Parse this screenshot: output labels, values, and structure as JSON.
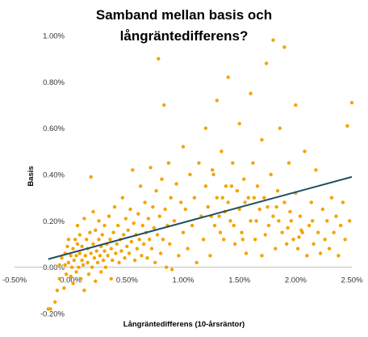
{
  "chart_data": {
    "type": "scatter",
    "title_lines": [
      "Samband mellan basis och",
      "långräntedifferens?"
    ],
    "xlabel": "Långräntedifferens (10-årsräntor)",
    "ylabel": "Basis",
    "x_ticks": [
      "-0.50%",
      "0.00%",
      "0.50%",
      "1.00%",
      "1.50%",
      "2.00%",
      "2.50%"
    ],
    "y_ticks": [
      "-0.20%",
      "0.00%",
      "0.20%",
      "0.40%",
      "0.60%",
      "0.80%",
      "1.00%"
    ],
    "xlim": [
      -0.5,
      2.5
    ],
    "ylim": [
      -0.2,
      1.0
    ],
    "grid": false,
    "legend": "none",
    "point_color": "#f5a300",
    "trendline_color": "#1f4e66",
    "trendline": {
      "x": [
        -0.2,
        2.5
      ],
      "y": [
        0.035,
        0.39
      ]
    },
    "series": [
      {
        "points": [
          [
            -0.2,
            -0.18
          ],
          [
            -0.18,
            -0.18
          ],
          [
            -0.14,
            -0.15
          ],
          [
            -0.12,
            -0.1
          ],
          [
            -0.1,
            -0.05
          ],
          [
            -0.1,
            0.01
          ],
          [
            -0.08,
            0.04
          ],
          [
            -0.06,
            -0.09
          ],
          [
            -0.05,
            0.06
          ],
          [
            -0.05,
            0.01
          ],
          [
            -0.04,
            -0.03
          ],
          [
            -0.03,
            0.09
          ],
          [
            -0.02,
            0.02
          ],
          [
            -0.02,
            0.12
          ],
          [
            0.0,
            -0.04
          ],
          [
            0.0,
            0.05
          ],
          [
            0.01,
            0.0
          ],
          [
            0.02,
            0.08
          ],
          [
            0.02,
            -0.07
          ],
          [
            0.03,
            0.03
          ],
          [
            0.04,
            0.12
          ],
          [
            0.05,
            0.05
          ],
          [
            0.05,
            -0.02
          ],
          [
            0.06,
            0.1
          ],
          [
            0.06,
            0.18
          ],
          [
            0.07,
            0.0
          ],
          [
            0.08,
            0.06
          ],
          [
            0.08,
            0.14
          ],
          [
            0.09,
            -0.05
          ],
          [
            0.1,
            0.03
          ],
          [
            0.1,
            0.09
          ],
          [
            0.11,
            0.01
          ],
          [
            0.12,
            0.21
          ],
          [
            0.12,
            -0.1
          ],
          [
            0.13,
            0.05
          ],
          [
            0.14,
            0.12
          ],
          [
            0.15,
            0.02
          ],
          [
            0.15,
            0.08
          ],
          [
            0.16,
            -0.03
          ],
          [
            0.17,
            0.15
          ],
          [
            0.18,
            0.06
          ],
          [
            0.18,
            0.39
          ],
          [
            0.19,
            0.0
          ],
          [
            0.2,
            0.1
          ],
          [
            0.2,
            0.24
          ],
          [
            0.21,
            0.04
          ],
          [
            0.22,
            -0.06
          ],
          [
            0.22,
            0.16
          ],
          [
            0.23,
            0.07
          ],
          [
            0.24,
            0.02
          ],
          [
            0.25,
            0.12
          ],
          [
            0.25,
            0.2
          ],
          [
            0.26,
            0.05
          ],
          [
            0.27,
            -0.02
          ],
          [
            0.27,
            0.09
          ],
          [
            0.28,
            0.14
          ],
          [
            0.29,
            0.03
          ],
          [
            0.3,
            0.07
          ],
          [
            0.3,
            0.18
          ],
          [
            0.31,
            0.0
          ],
          [
            0.32,
            0.1
          ],
          [
            0.33,
            0.05
          ],
          [
            0.34,
            0.22
          ],
          [
            0.35,
            0.12
          ],
          [
            0.36,
            -0.05
          ],
          [
            0.36,
            0.08
          ],
          [
            0.37,
            0.03
          ],
          [
            0.38,
            0.15
          ],
          [
            0.39,
            0.26
          ],
          [
            0.4,
            0.06
          ],
          [
            0.41,
            0.1
          ],
          [
            0.42,
            0.18
          ],
          [
            0.43,
            0.02
          ],
          [
            0.44,
            0.12
          ],
          [
            0.45,
            0.07
          ],
          [
            0.46,
            0.3
          ],
          [
            0.47,
            0.14
          ],
          [
            0.48,
            0.04
          ],
          [
            0.49,
            0.21
          ],
          [
            0.5,
            0.09
          ],
          [
            0.51,
            0.16
          ],
          [
            0.52,
            0.06
          ],
          [
            0.53,
            0.25
          ],
          [
            0.54,
            0.11
          ],
          [
            0.55,
            0.42
          ],
          [
            0.56,
            0.19
          ],
          [
            0.57,
            0.03
          ],
          [
            0.58,
            0.14
          ],
          [
            0.59,
            0.08
          ],
          [
            0.6,
            0.23
          ],
          [
            0.61,
            0.12
          ],
          [
            0.62,
            0.35
          ],
          [
            0.63,
            0.05
          ],
          [
            0.64,
            0.18
          ],
          [
            0.65,
            0.1
          ],
          [
            0.66,
            0.28
          ],
          [
            0.67,
            0.15
          ],
          [
            0.68,
            0.04
          ],
          [
            0.69,
            0.21
          ],
          [
            0.7,
            0.12
          ],
          [
            0.71,
            0.43
          ],
          [
            0.72,
            0.08
          ],
          [
            0.73,
            0.26
          ],
          [
            0.74,
            0.17
          ],
          [
            0.75,
            0.02
          ],
          [
            0.76,
            0.33
          ],
          [
            0.77,
            0.14
          ],
          [
            0.78,
            0.9
          ],
          [
            0.79,
            0.22
          ],
          [
            0.8,
            0.06
          ],
          [
            0.81,
            0.38
          ],
          [
            0.82,
            0.12
          ],
          [
            0.83,
            0.7
          ],
          [
            0.84,
            0.25
          ],
          [
            0.85,
            0.0
          ],
          [
            0.86,
            0.18
          ],
          [
            0.87,
            0.45
          ],
          [
            0.88,
            0.1
          ],
          [
            0.89,
            0.3
          ],
          [
            0.9,
            -0.01
          ],
          [
            0.92,
            0.2
          ],
          [
            0.94,
            0.36
          ],
          [
            0.96,
            0.05
          ],
          [
            0.98,
            0.28
          ],
          [
            1.0,
            0.15
          ],
          [
            1.0,
            0.52
          ],
          [
            1.02,
            0.25
          ],
          [
            1.04,
            0.08
          ],
          [
            1.06,
            0.4
          ],
          [
            1.08,
            0.18
          ],
          [
            1.1,
            0.3
          ],
          [
            1.12,
            0.02
          ],
          [
            1.14,
            0.45
          ],
          [
            1.16,
            0.22
          ],
          [
            1.18,
            0.12
          ],
          [
            1.2,
            0.35
          ],
          [
            1.2,
            0.6
          ],
          [
            1.22,
            0.26
          ],
          [
            1.24,
            0.05
          ],
          [
            1.26,
            0.42
          ],
          [
            1.28,
            0.18
          ],
          [
            1.3,
            0.3
          ],
          [
            1.3,
            0.72
          ],
          [
            1.32,
            0.22
          ],
          [
            1.34,
            0.5
          ],
          [
            1.36,
            0.12
          ],
          [
            1.38,
            0.35
          ],
          [
            1.4,
            0.28
          ],
          [
            1.4,
            0.82
          ],
          [
            1.42,
            0.2
          ],
          [
            1.44,
            0.45
          ],
          [
            1.46,
            0.1
          ],
          [
            1.48,
            0.33
          ],
          [
            1.5,
            0.25
          ],
          [
            1.5,
            0.62
          ],
          [
            1.52,
            0.15
          ],
          [
            1.54,
            0.38
          ],
          [
            1.56,
            0.06
          ],
          [
            1.58,
            0.3
          ],
          [
            1.6,
            0.2
          ],
          [
            1.6,
            0.75
          ],
          [
            1.62,
            0.45
          ],
          [
            1.64,
            0.12
          ],
          [
            1.66,
            0.35
          ],
          [
            1.68,
            0.25
          ],
          [
            1.7,
            0.55
          ],
          [
            1.7,
            0.05
          ],
          [
            1.72,
            0.3
          ],
          [
            1.74,
            0.88
          ],
          [
            1.76,
            0.18
          ],
          [
            1.78,
            0.4
          ],
          [
            1.8,
            0.22
          ],
          [
            1.8,
            0.98
          ],
          [
            1.82,
            0.08
          ],
          [
            1.84,
            0.33
          ],
          [
            1.86,
            0.6
          ],
          [
            1.88,
            0.15
          ],
          [
            1.9,
            0.28
          ],
          [
            1.9,
            0.95
          ],
          [
            1.92,
            0.1
          ],
          [
            1.94,
            0.45
          ],
          [
            1.96,
            0.2
          ],
          [
            1.98,
            0.12
          ],
          [
            2.0,
            0.32
          ],
          [
            2.0,
            0.7
          ],
          [
            2.02,
            0.08
          ],
          [
            2.04,
            0.22
          ],
          [
            2.06,
            0.15
          ],
          [
            2.08,
            0.5
          ],
          [
            2.1,
            0.05
          ],
          [
            2.12,
            0.18
          ],
          [
            2.14,
            0.28
          ],
          [
            2.16,
            0.1
          ],
          [
            2.18,
            0.42
          ],
          [
            2.2,
            0.15
          ],
          [
            2.22,
            0.06
          ],
          [
            2.24,
            0.25
          ],
          [
            2.26,
            0.12
          ],
          [
            2.28,
            0.2
          ],
          [
            2.3,
            0.08
          ],
          [
            2.32,
            0.3
          ],
          [
            2.34,
            0.15
          ],
          [
            2.36,
            0.22
          ],
          [
            2.38,
            0.05
          ],
          [
            2.4,
            0.18
          ],
          [
            2.42,
            0.28
          ],
          [
            2.44,
            0.12
          ],
          [
            2.46,
            0.61
          ],
          [
            2.48,
            0.2
          ],
          [
            2.5,
            0.71
          ],
          [
            1.25,
            0.22
          ],
          [
            1.35,
            0.3
          ],
          [
            1.45,
            0.18
          ],
          [
            1.55,
            0.28
          ],
          [
            1.65,
            0.2
          ],
          [
            1.75,
            0.26
          ],
          [
            1.85,
            0.2
          ],
          [
            1.95,
            0.24
          ],
          [
            2.05,
            0.16
          ],
          [
            2.15,
            0.2
          ],
          [
            1.33,
            0.15
          ],
          [
            1.43,
            0.35
          ],
          [
            1.53,
            0.12
          ],
          [
            1.63,
            0.3
          ],
          [
            1.73,
            0.14
          ],
          [
            1.83,
            0.26
          ],
          [
            1.93,
            0.17
          ],
          [
            2.03,
            0.13
          ],
          [
            1.27,
            0.4
          ],
          [
            1.37,
            0.24
          ]
        ]
      }
    ]
  }
}
